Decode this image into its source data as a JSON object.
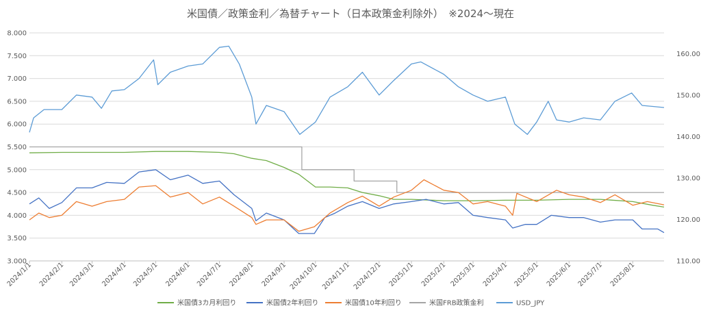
{
  "chart_data": {
    "type": "line",
    "title": "米国債／政策金利／為替チャート（日本政策金利除外）　※2024～現在",
    "xlabel": "",
    "ylabel": "",
    "y_left": {
      "min": 3.0,
      "max": 8.0,
      "step": 0.5,
      "ticks": [
        "3.000",
        "3.500",
        "4.000",
        "4.500",
        "5.000",
        "5.500",
        "6.000",
        "6.500",
        "7.000",
        "7.500",
        "8.000"
      ]
    },
    "y_right": {
      "min": 110,
      "max": 165,
      "step": 10,
      "ticks": [
        "110.00",
        "120.00",
        "130.00",
        "140.00",
        "150.00",
        "160.00"
      ]
    },
    "x_ticks": [
      "2024/1/1",
      "2024/2/1",
      "2024/3/1",
      "2024/4/1",
      "2024/5/1",
      "2024/6/1",
      "2024/7/1",
      "2024/8/1",
      "2024/9/1",
      "2024/10/1",
      "2024/11/1",
      "2024/12/1",
      "2025/1/1",
      "2025/2/1",
      "2025/3/1",
      "2025/4/1",
      "2025/5/1",
      "2025/6/1",
      "2025/7/1",
      "2025/8/1"
    ],
    "x_end": "2025/8/31",
    "grid": true,
    "legend_position": "bottom",
    "series": [
      {
        "name": "米国債3カ月利回り",
        "axis": "left",
        "color": "#70AD47",
        "points": [
          [
            "2024/1/1",
            5.37
          ],
          [
            "2024/2/1",
            5.38
          ],
          [
            "2024/3/1",
            5.38
          ],
          [
            "2024/4/1",
            5.38
          ],
          [
            "2024/5/1",
            5.4
          ],
          [
            "2024/6/1",
            5.4
          ],
          [
            "2024/7/1",
            5.38
          ],
          [
            "2024/7/15",
            5.35
          ],
          [
            "2024/8/1",
            5.25
          ],
          [
            "2024/8/15",
            5.2
          ],
          [
            "2024/9/1",
            5.05
          ],
          [
            "2024/9/15",
            4.9
          ],
          [
            "2024/10/1",
            4.62
          ],
          [
            "2024/10/15",
            4.62
          ],
          [
            "2024/11/1",
            4.6
          ],
          [
            "2024/11/15",
            4.5
          ],
          [
            "2024/12/1",
            4.43
          ],
          [
            "2024/12/15",
            4.35
          ],
          [
            "2025/1/1",
            4.35
          ],
          [
            "2025/2/1",
            4.32
          ],
          [
            "2025/3/1",
            4.32
          ],
          [
            "2025/4/1",
            4.33
          ],
          [
            "2025/5/1",
            4.33
          ],
          [
            "2025/6/1",
            4.35
          ],
          [
            "2025/7/1",
            4.35
          ],
          [
            "2025/8/1",
            4.3
          ],
          [
            "2025/8/20",
            4.22
          ],
          [
            "2025/8/31",
            4.18
          ]
        ]
      },
      {
        "name": "米国債2年利回り",
        "axis": "left",
        "color": "#4472C4",
        "points": [
          [
            "2024/1/1",
            4.25
          ],
          [
            "2024/1/10",
            4.38
          ],
          [
            "2024/1/20",
            4.15
          ],
          [
            "2024/2/1",
            4.28
          ],
          [
            "2024/2/15",
            4.6
          ],
          [
            "2024/3/1",
            4.6
          ],
          [
            "2024/3/15",
            4.72
          ],
          [
            "2024/4/1",
            4.7
          ],
          [
            "2024/4/15",
            4.95
          ],
          [
            "2024/5/1",
            5.0
          ],
          [
            "2024/5/15",
            4.78
          ],
          [
            "2024/6/1",
            4.88
          ],
          [
            "2024/6/15",
            4.7
          ],
          [
            "2024/7/1",
            4.75
          ],
          [
            "2024/7/15",
            4.45
          ],
          [
            "2024/8/1",
            4.15
          ],
          [
            "2024/8/5",
            3.88
          ],
          [
            "2024/8/15",
            4.05
          ],
          [
            "2024/9/1",
            3.9
          ],
          [
            "2024/9/15",
            3.6
          ],
          [
            "2024/9/30",
            3.6
          ],
          [
            "2024/10/10",
            3.95
          ],
          [
            "2024/10/20",
            4.05
          ],
          [
            "2024/11/1",
            4.2
          ],
          [
            "2024/11/15",
            4.3
          ],
          [
            "2024/12/1",
            4.15
          ],
          [
            "2024/12/15",
            4.25
          ],
          [
            "2025/1/1",
            4.3
          ],
          [
            "2025/1/15",
            4.35
          ],
          [
            "2025/2/1",
            4.25
          ],
          [
            "2025/2/15",
            4.28
          ],
          [
            "2025/3/1",
            4.0
          ],
          [
            "2025/3/15",
            3.95
          ],
          [
            "2025/4/1",
            3.9
          ],
          [
            "2025/4/8",
            3.72
          ],
          [
            "2025/4/20",
            3.8
          ],
          [
            "2025/5/1",
            3.8
          ],
          [
            "2025/5/15",
            4.0
          ],
          [
            "2025/6/1",
            3.95
          ],
          [
            "2025/6/15",
            3.95
          ],
          [
            "2025/7/1",
            3.85
          ],
          [
            "2025/7/15",
            3.9
          ],
          [
            "2025/8/1",
            3.9
          ],
          [
            "2025/8/10",
            3.7
          ],
          [
            "2025/8/25",
            3.7
          ],
          [
            "2025/8/31",
            3.62
          ]
        ]
      },
      {
        "name": "米国債10年利回り",
        "axis": "left",
        "color": "#ED7D31",
        "points": [
          [
            "2024/1/1",
            3.9
          ],
          [
            "2024/1/10",
            4.05
          ],
          [
            "2024/1/20",
            3.95
          ],
          [
            "2024/2/1",
            4.0
          ],
          [
            "2024/2/15",
            4.3
          ],
          [
            "2024/3/1",
            4.2
          ],
          [
            "2024/3/15",
            4.3
          ],
          [
            "2024/4/1",
            4.35
          ],
          [
            "2024/4/15",
            4.62
          ],
          [
            "2024/5/1",
            4.65
          ],
          [
            "2024/5/15",
            4.4
          ],
          [
            "2024/6/1",
            4.5
          ],
          [
            "2024/6/15",
            4.25
          ],
          [
            "2024/7/1",
            4.4
          ],
          [
            "2024/7/15",
            4.2
          ],
          [
            "2024/8/1",
            3.95
          ],
          [
            "2024/8/5",
            3.8
          ],
          [
            "2024/8/15",
            3.9
          ],
          [
            "2024/9/1",
            3.9
          ],
          [
            "2024/9/15",
            3.65
          ],
          [
            "2024/9/30",
            3.75
          ],
          [
            "2024/10/15",
            4.05
          ],
          [
            "2024/11/1",
            4.28
          ],
          [
            "2024/11/15",
            4.42
          ],
          [
            "2024/12/1",
            4.2
          ],
          [
            "2024/12/15",
            4.4
          ],
          [
            "2025/1/1",
            4.55
          ],
          [
            "2025/1/13",
            4.78
          ],
          [
            "2025/2/1",
            4.55
          ],
          [
            "2025/2/15",
            4.5
          ],
          [
            "2025/3/1",
            4.25
          ],
          [
            "2025/3/15",
            4.3
          ],
          [
            "2025/4/1",
            4.2
          ],
          [
            "2025/4/8",
            4.0
          ],
          [
            "2025/4/12",
            4.48
          ],
          [
            "2025/5/1",
            4.3
          ],
          [
            "2025/5/20",
            4.55
          ],
          [
            "2025/6/1",
            4.45
          ],
          [
            "2025/6/15",
            4.4
          ],
          [
            "2025/7/1",
            4.28
          ],
          [
            "2025/7/15",
            4.45
          ],
          [
            "2025/8/1",
            4.22
          ],
          [
            "2025/8/15",
            4.3
          ],
          [
            "2025/8/31",
            4.23
          ]
        ]
      },
      {
        "name": "米国FRB政策金利",
        "axis": "left",
        "color": "#A5A5A5",
        "points": [
          [
            "2024/1/1",
            5.5
          ],
          [
            "2024/9/18",
            5.5
          ],
          [
            "2024/9/18",
            5.0
          ],
          [
            "2024/11/7",
            5.0
          ],
          [
            "2024/11/7",
            4.75
          ],
          [
            "2024/12/18",
            4.75
          ],
          [
            "2024/12/18",
            4.5
          ],
          [
            "2025/8/31",
            4.5
          ]
        ]
      },
      {
        "name": "USD_JPY",
        "axis": "right",
        "color": "#5B9BD5",
        "points": [
          [
            "2024/1/1",
            141.0
          ],
          [
            "2024/1/5",
            144.5
          ],
          [
            "2024/1/15",
            146.5
          ],
          [
            "2024/2/1",
            146.5
          ],
          [
            "2024/2/15",
            150.0
          ],
          [
            "2024/3/1",
            149.5
          ],
          [
            "2024/3/10",
            146.8
          ],
          [
            "2024/3/20",
            151.0
          ],
          [
            "2024/4/1",
            151.3
          ],
          [
            "2024/4/15",
            154.0
          ],
          [
            "2024/4/29",
            158.5
          ],
          [
            "2024/5/3",
            152.5
          ],
          [
            "2024/5/15",
            155.5
          ],
          [
            "2024/6/1",
            157.0
          ],
          [
            "2024/6/15",
            157.5
          ],
          [
            "2024/7/1",
            161.5
          ],
          [
            "2024/7/10",
            161.8
          ],
          [
            "2024/7/20",
            157.5
          ],
          [
            "2024/8/1",
            149.5
          ],
          [
            "2024/8/5",
            143.0
          ],
          [
            "2024/8/15",
            147.5
          ],
          [
            "2024/9/1",
            146.0
          ],
          [
            "2024/9/16",
            140.5
          ],
          [
            "2024/10/1",
            143.5
          ],
          [
            "2024/10/15",
            149.5
          ],
          [
            "2024/11/1",
            152.0
          ],
          [
            "2024/11/15",
            155.5
          ],
          [
            "2024/12/1",
            150.0
          ],
          [
            "2024/12/15",
            153.5
          ],
          [
            "2025/1/1",
            157.5
          ],
          [
            "2025/1/10",
            158.0
          ],
          [
            "2025/2/1",
            155.0
          ],
          [
            "2025/2/15",
            152.0
          ],
          [
            "2025/3/1",
            150.0
          ],
          [
            "2025/3/15",
            148.5
          ],
          [
            "2025/4/1",
            149.5
          ],
          [
            "2025/4/10",
            143.0
          ],
          [
            "2025/4/22",
            140.5
          ],
          [
            "2025/5/1",
            143.5
          ],
          [
            "2025/5/12",
            148.5
          ],
          [
            "2025/5/20",
            144.0
          ],
          [
            "2025/6/1",
            143.5
          ],
          [
            "2025/6/15",
            144.5
          ],
          [
            "2025/7/1",
            144.0
          ],
          [
            "2025/7/15",
            148.5
          ],
          [
            "2025/7/31",
            150.5
          ],
          [
            "2025/8/10",
            147.5
          ],
          [
            "2025/8/31",
            147.0
          ]
        ]
      }
    ]
  }
}
